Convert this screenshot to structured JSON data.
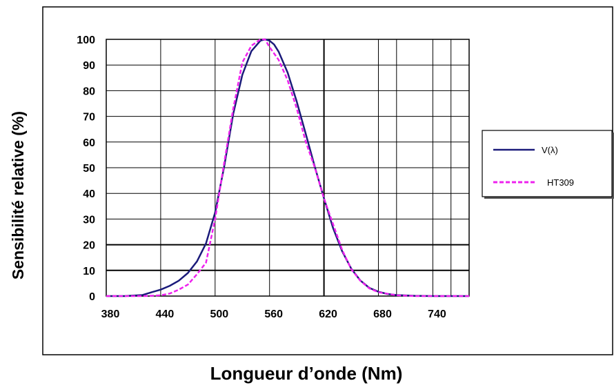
{
  "chart_data": {
    "type": "line",
    "xlabel": "Longueur d’onde (Nm)",
    "ylabel": "Sensibilité relative (%)",
    "xlim": [
      380,
      780
    ],
    "ylim": [
      0,
      100
    ],
    "x_ticks": [
      "380",
      "440",
      "500",
      "560",
      "620",
      "680",
      "740"
    ],
    "y_ticks": [
      "0",
      "10",
      "20",
      "30",
      "40",
      "50",
      "60",
      "70",
      "80",
      "90",
      "100"
    ],
    "grid": true,
    "legend_position": "right",
    "series": [
      {
        "name": "V(λ)",
        "color": "#1a1a7a",
        "style": "solid",
        "x": [
          380,
          400,
          420,
          430,
          440,
          450,
          460,
          470,
          480,
          490,
          500,
          510,
          520,
          530,
          540,
          550,
          555,
          560,
          565,
          570,
          580,
          590,
          600,
          610,
          620,
          630,
          640,
          650,
          660,
          670,
          680,
          690,
          700,
          720,
          740,
          760,
          780
        ],
        "y": [
          0,
          0,
          0.4,
          1.5,
          2.5,
          4,
          6,
          9,
          13.5,
          20.5,
          32.5,
          50.5,
          71,
          86.2,
          95.4,
          99.5,
          100,
          99.5,
          98,
          95.2,
          87,
          75.7,
          63.1,
          50.3,
          38.1,
          26.5,
          17.5,
          10.7,
          6.1,
          3.2,
          1.7,
          0.8,
          0.4,
          0.1,
          0,
          0,
          0
        ]
      },
      {
        "name": "HT309",
        "color": "#ee22ee",
        "style": "dashed",
        "x": [
          380,
          420,
          440,
          450,
          460,
          470,
          480,
          490,
          500,
          510,
          520,
          530,
          540,
          550,
          555,
          560,
          570,
          580,
          590,
          600,
          610,
          620,
          630,
          640,
          650,
          660,
          670,
          680,
          700,
          720,
          740,
          760,
          780
        ],
        "y": [
          0,
          0,
          0.3,
          1,
          2.5,
          4.5,
          8.5,
          13,
          30,
          52,
          73,
          91,
          97.5,
          100,
          100,
          97,
          92,
          84,
          73,
          60,
          50,
          38,
          28,
          18,
          10.5,
          6,
          3,
          1.5,
          0.3,
          0,
          0,
          0,
          0
        ]
      }
    ]
  }
}
